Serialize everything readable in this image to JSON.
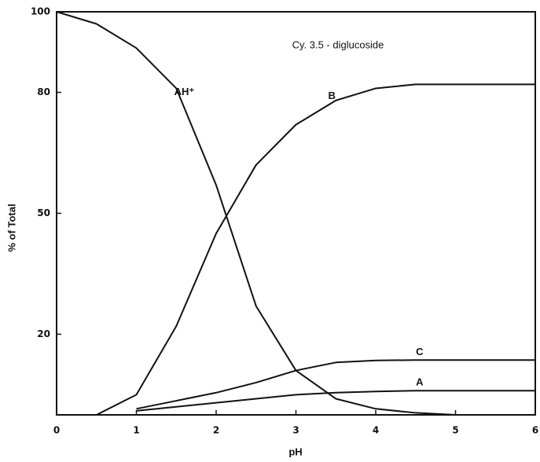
{
  "chart_data": {
    "type": "line",
    "annotation": "Cy. 3.5 - diglucoside",
    "x_label": "pH",
    "y_label": "% of Total",
    "x": [
      0,
      0.5,
      1,
      1.5,
      2,
      2.5,
      3,
      3.5,
      4,
      4.5,
      5,
      5.5,
      6
    ],
    "series": [
      {
        "name": "AH⁺",
        "color": "#111111",
        "values": [
          100,
          97,
          91,
          81,
          57,
          27,
          11,
          4,
          1.5,
          0.5,
          0,
          null,
          null
        ]
      },
      {
        "name": "B",
        "color": "#111111",
        "values": [
          null,
          0,
          5,
          22,
          45,
          62,
          72,
          78,
          81,
          82,
          82,
          82,
          82
        ]
      },
      {
        "name": "C",
        "color": "#111111",
        "values": [
          null,
          null,
          1.5,
          3.5,
          5.5,
          8,
          11,
          13,
          13.5,
          13.6,
          13.6,
          13.6,
          13.6
        ]
      },
      {
        "name": "A",
        "color": "#111111",
        "values": [
          null,
          null,
          1,
          2,
          3,
          4,
          5,
          5.5,
          5.8,
          6,
          6,
          6,
          6
        ]
      }
    ],
    "xlim": [
      0,
      6
    ],
    "xticks": [
      0,
      1,
      2,
      3,
      4,
      5,
      6
    ],
    "ylim": [
      0,
      100
    ],
    "yticks": [
      20,
      50,
      80,
      100
    ]
  }
}
